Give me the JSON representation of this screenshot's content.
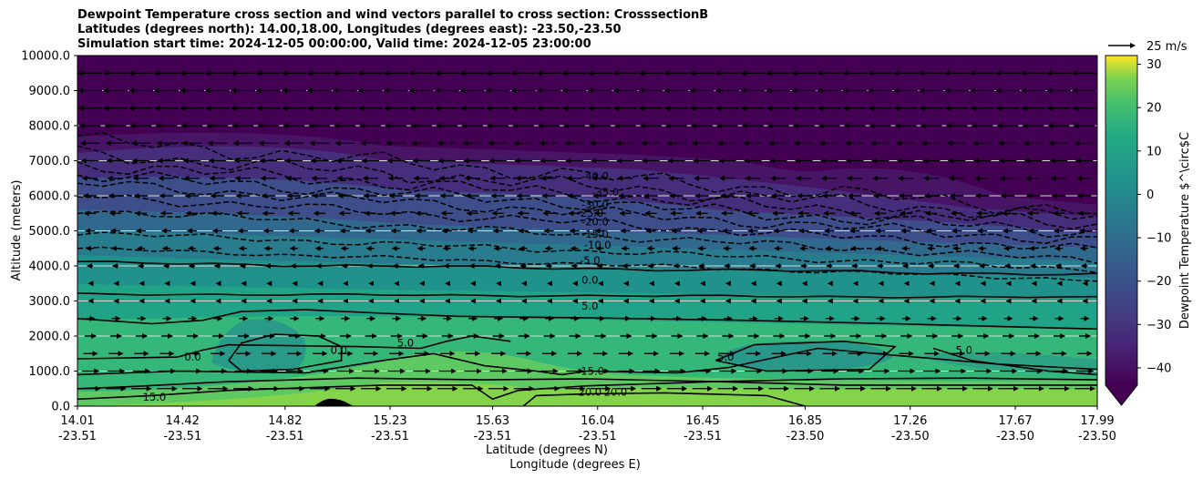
{
  "title_lines": [
    "Dewpoint Temperature cross section and wind vectors parallel to cross section: CrosssectionB",
    "Latitudes (degrees north): 14.00,18.00, Longitudes (degrees east): -23.50,-23.50",
    "Simulation start time: 2024-12-05 00:00:00, Valid time: 2024-12-05 23:00:00"
  ],
  "chart_data": {
    "type": "contour",
    "ylabel": "Altitude (meters)",
    "xlabel_lines": [
      "Latitude (degrees N)",
      "Longitude (degrees E)"
    ],
    "ylim": [
      0,
      10000
    ],
    "y_ticks": [
      "0.0",
      "1000.0",
      "2000.0",
      "3000.0",
      "4000.0",
      "5000.0",
      "6000.0",
      "7000.0",
      "8000.0",
      "9000.0",
      "10000.0"
    ],
    "x_ticks": [
      {
        "lat": "14.01",
        "lon": "-23.51"
      },
      {
        "lat": "14.42",
        "lon": "-23.51"
      },
      {
        "lat": "14.82",
        "lon": "-23.51"
      },
      {
        "lat": "15.23",
        "lon": "-23.51"
      },
      {
        "lat": "15.63",
        "lon": "-23.51"
      },
      {
        "lat": "16.04",
        "lon": "-23.51"
      },
      {
        "lat": "16.45",
        "lon": "-23.51"
      },
      {
        "lat": "16.85",
        "lon": "-23.50"
      },
      {
        "lat": "17.26",
        "lon": "-23.50"
      },
      {
        "lat": "17.67",
        "lon": "-23.50"
      },
      {
        "lat": "17.99",
        "lon": "-23.50"
      }
    ],
    "horizontal_grid": true,
    "colorbar": {
      "label": "Dewpoint Temperature $^\\circ$C",
      "range": [
        -44,
        32
      ],
      "ticks": [
        "30",
        "20",
        "10",
        "0",
        "−10",
        "−20",
        "−30",
        "−40"
      ],
      "tick_values": [
        30,
        20,
        10,
        0,
        -10,
        -20,
        -30,
        -40
      ],
      "extend": "min",
      "colormap": "viridis"
    },
    "wind_key": {
      "label": "25 m/s"
    },
    "contour_levels": [
      -40,
      -35,
      -30,
      -25,
      -20,
      -15,
      -10,
      -5,
      0,
      5,
      15,
      20
    ],
    "contour_labels": [
      {
        "text": "-40.0",
        "level": -40,
        "x": 16.03,
        "y": 6450
      },
      {
        "text": "-35.0",
        "level": -35,
        "x": 16.07,
        "y": 6000
      },
      {
        "text": "-30.0",
        "level": -30,
        "x": 16.03,
        "y": 5650
      },
      {
        "text": "-25.0",
        "level": -25,
        "x": 16.01,
        "y": 5400
      },
      {
        "text": "-20.0",
        "level": -20,
        "x": 16.03,
        "y": 5150
      },
      {
        "text": "-15.0",
        "level": -15,
        "x": 16.03,
        "y": 4800
      },
      {
        "text": "-10.0",
        "level": -10,
        "x": 16.04,
        "y": 4500
      },
      {
        "text": "-5.0",
        "level": -5,
        "x": 16.01,
        "y": 4050
      },
      {
        "text": "0.0",
        "level": 0,
        "x": 16.01,
        "y": 3500
      },
      {
        "text": "5.0",
        "level": 5,
        "x": 16.01,
        "y": 2750
      },
      {
        "text": "5.0",
        "level": 5,
        "x": 15.29,
        "y": 1700
      },
      {
        "text": "5.0",
        "level": 5,
        "x": 16.54,
        "y": 1300
      },
      {
        "text": "5.0",
        "level": 5,
        "x": 17.47,
        "y": 1500
      },
      {
        "text": "0.0",
        "level": 0,
        "x": 14.46,
        "y": 1300
      },
      {
        "text": "0.0",
        "level": 0,
        "x": 15.03,
        "y": 1500
      },
      {
        "text": "15.0",
        "level": 15,
        "x": 16.02,
        "y": 900
      },
      {
        "text": "15.0",
        "level": 15,
        "x": 14.31,
        "y": 150
      },
      {
        "text": "20.0",
        "level": 20,
        "x": 16.01,
        "y": 300
      },
      {
        "text": "20.0",
        "level": 20,
        "x": 16.11,
        "y": 300
      }
    ]
  }
}
